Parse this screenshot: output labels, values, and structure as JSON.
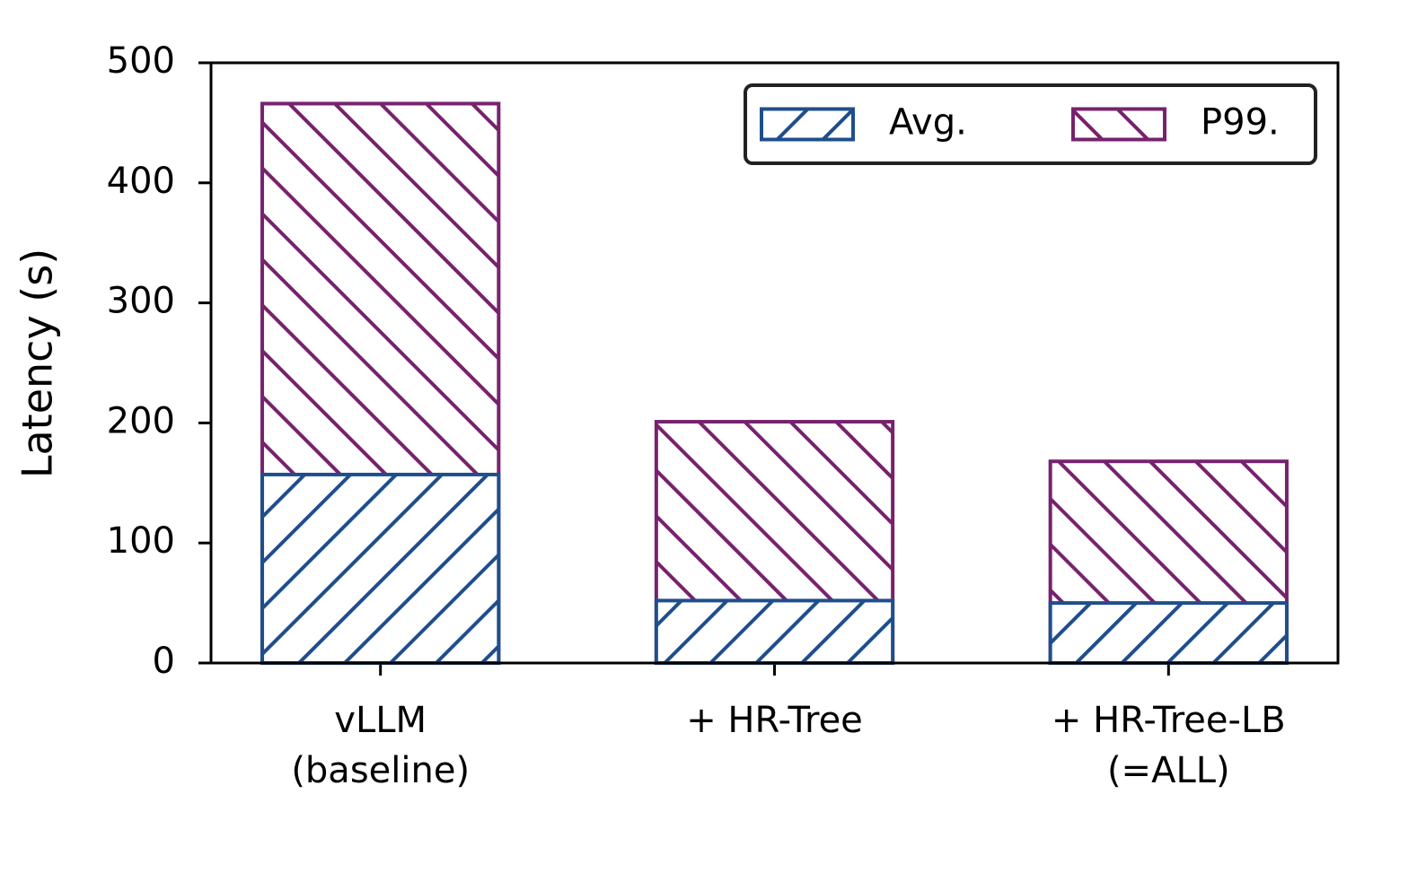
{
  "chart_data": {
    "type": "bar",
    "categories": [
      "vLLM\n(baseline)",
      "+ HR-Tree",
      "+ HR-Tree-LB\n(=ALL)"
    ],
    "series": [
      {
        "name": "P99.",
        "color": "#77226e",
        "hatch": "\\",
        "values": [
          466,
          201,
          168
        ]
      },
      {
        "name": "Avg.",
        "color": "#1f4e8c",
        "hatch": "/",
        "values": [
          157,
          52,
          50
        ]
      }
    ],
    "ylabel": "Latency (s)",
    "ylim": [
      0,
      500
    ],
    "yticks": [
      0,
      100,
      200,
      300,
      400,
      500
    ],
    "legend": "upper right",
    "grid": false
  }
}
